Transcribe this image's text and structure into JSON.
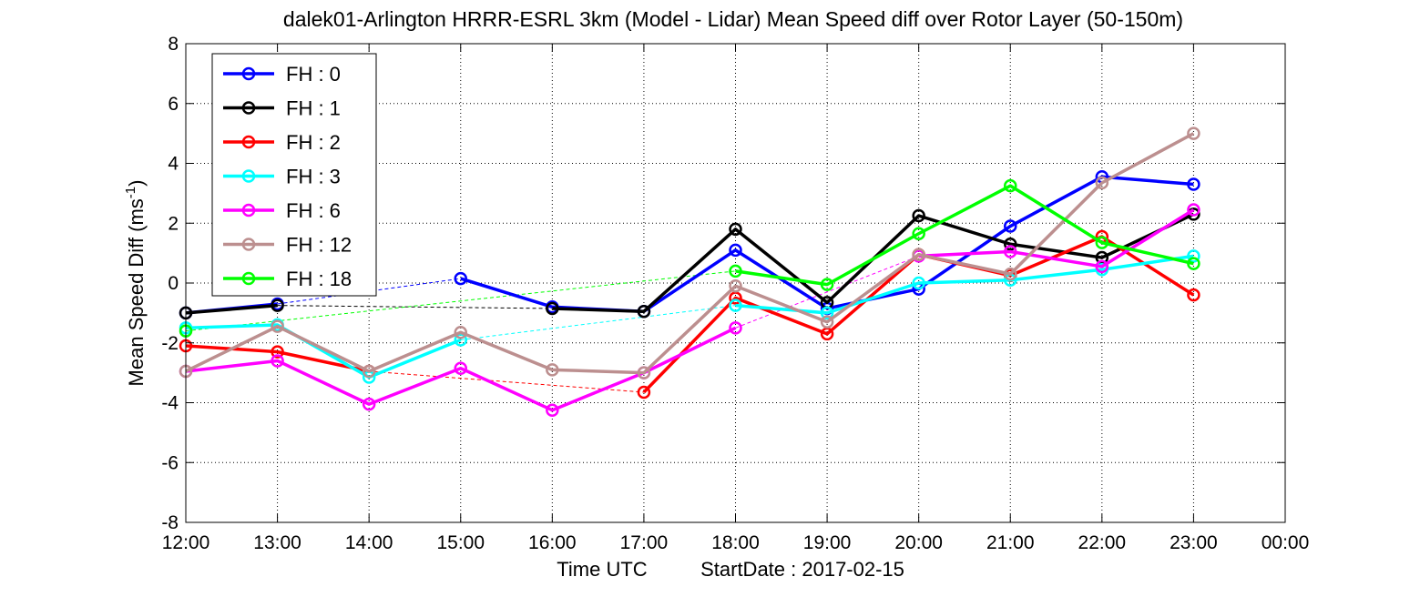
{
  "chart_data": {
    "type": "line",
    "title": "dalek01-Arlington HRRR-ESRL 3km (Model - Lidar) Mean Speed diff over Rotor Layer (50-150m)",
    "xlabel": "Time UTC",
    "xlabel_extra": "StartDate : 2017-02-15",
    "ylabel_main": "Mean Speed Diff (ms",
    "ylabel_sup": "-1",
    "ylabel_close": ")",
    "x_ticks": [
      "12:00",
      "13:00",
      "14:00",
      "15:00",
      "16:00",
      "17:00",
      "18:00",
      "19:00",
      "20:00",
      "21:00",
      "22:00",
      "23:00",
      "00:00"
    ],
    "y_ticks": [
      8,
      6,
      4,
      2,
      0,
      -2,
      -4,
      -6,
      -8
    ],
    "xlim": [
      0,
      12
    ],
    "ylim": [
      -8,
      8
    ],
    "grid": true,
    "legend_position": "top-left",
    "series": [
      {
        "name": "FH : 0",
        "color": "#0000ff",
        "values": [
          -1.0,
          -0.7,
          null,
          0.15,
          -0.8,
          -0.95,
          1.1,
          -0.85,
          -0.2,
          1.9,
          3.55,
          3.3
        ]
      },
      {
        "name": "FH : 1",
        "color": "#000000",
        "values": [
          -1.0,
          -0.75,
          null,
          null,
          -0.85,
          -0.95,
          1.8,
          -0.65,
          2.25,
          1.3,
          0.85,
          2.3
        ]
      },
      {
        "name": "FH : 2",
        "color": "#ff0000",
        "values": [
          -2.1,
          -2.3,
          -2.95,
          null,
          null,
          -3.65,
          -0.5,
          -1.7,
          0.95,
          0.25,
          1.55,
          -0.4
        ]
      },
      {
        "name": "FH : 3",
        "color": "#00ffff",
        "values": [
          -1.5,
          -1.4,
          -3.15,
          -1.9,
          null,
          null,
          -0.75,
          -1.0,
          0.0,
          0.1,
          0.45,
          0.9
        ]
      },
      {
        "name": "FH : 6",
        "color": "#ff00ff",
        "values": [
          -2.95,
          -2.6,
          -4.05,
          -2.85,
          -4.25,
          -3.0,
          -1.5,
          null,
          0.9,
          1.05,
          0.55,
          2.45
        ]
      },
      {
        "name": "FH : 12",
        "color": "#bc8f8f",
        "values": [
          -2.95,
          -1.45,
          -2.95,
          -1.65,
          -2.9,
          -3.0,
          -0.1,
          -1.3,
          0.95,
          0.3,
          3.35,
          5.0
        ]
      },
      {
        "name": "FH : 18",
        "color": "#00ff00",
        "values": [
          -1.6,
          null,
          null,
          null,
          null,
          null,
          0.4,
          -0.05,
          1.65,
          3.25,
          1.35,
          0.65
        ]
      }
    ]
  }
}
